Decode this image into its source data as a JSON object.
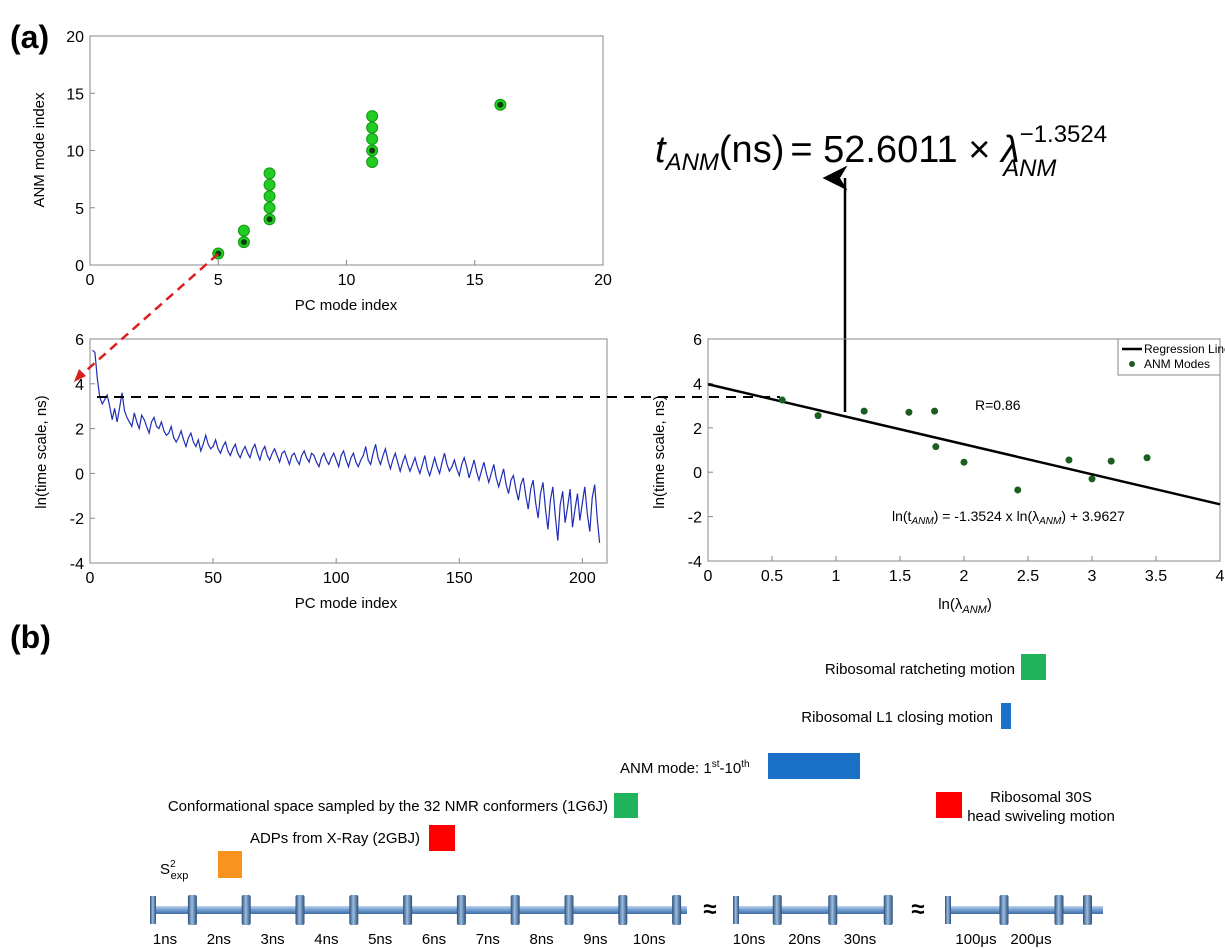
{
  "panel_labels": {
    "a": "(a)",
    "b": "(b)"
  },
  "formula": {
    "lhs_var": "t",
    "lhs_sub": "ANM",
    "unit": "(ns)",
    "rhs_text": "= 52.6011 × ",
    "rhs_var": "λ",
    "rhs_sub": "ANM",
    "rhs_exp": "−1.3524"
  },
  "chart_data": [
    {
      "id": "pc_vs_anm",
      "type": "scatter",
      "xlabel": "PC mode index",
      "ylabel": "ANM mode index",
      "xlim": [
        0,
        20
      ],
      "ylim": [
        0,
        20
      ],
      "xticks": [
        0,
        5,
        10,
        15,
        20
      ],
      "yticks": [
        0,
        5,
        10,
        15,
        20
      ],
      "grid": false,
      "points": [
        {
          "x": 5,
          "y": 1,
          "dark_center": true
        },
        {
          "x": 6,
          "y": 2,
          "dark_center": true
        },
        {
          "x": 6,
          "y": 3,
          "dark_center": false
        },
        {
          "x": 7,
          "y": 4,
          "dark_center": true
        },
        {
          "x": 7,
          "y": 5,
          "dark_center": false
        },
        {
          "x": 7,
          "y": 6,
          "dark_center": false
        },
        {
          "x": 7,
          "y": 7,
          "dark_center": false
        },
        {
          "x": 7,
          "y": 8,
          "dark_center": false
        },
        {
          "x": 11,
          "y": 9,
          "dark_center": false
        },
        {
          "x": 11,
          "y": 10,
          "dark_center": true
        },
        {
          "x": 11,
          "y": 11,
          "dark_center": false
        },
        {
          "x": 11,
          "y": 12,
          "dark_center": false
        },
        {
          "x": 11,
          "y": 13,
          "dark_center": false
        },
        {
          "x": 16,
          "y": 14,
          "dark_center": true
        }
      ],
      "colors": {
        "marker": "#22cc22",
        "marker_edge": "#119911",
        "center": "#0b3d0b"
      }
    },
    {
      "id": "pc_timescale",
      "type": "line",
      "xlabel": "PC mode index",
      "ylabel": "ln(time scale, ns)",
      "xlim": [
        0,
        210
      ],
      "ylim": [
        -4,
        6
      ],
      "xticks": [
        0,
        50,
        100,
        150,
        200
      ],
      "yticks": [
        -4,
        -2,
        0,
        2,
        4,
        6
      ],
      "grid": false,
      "color": "#1f2db5",
      "x_start": 1,
      "values": [
        5.5,
        5.4,
        4.2,
        3.4,
        3.1,
        3.3,
        3.5,
        3.0,
        2.4,
        2.9,
        2.3,
        2.9,
        3.6,
        2.8,
        2.5,
        2.3,
        2.1,
        2.7,
        2.3,
        2.0,
        2.6,
        2.4,
        2.1,
        1.8,
        2.3,
        2.5,
        2.1,
        2.0,
        2.3,
        1.9,
        1.7,
        1.8,
        2.1,
        1.6,
        1.4,
        1.6,
        1.9,
        1.5,
        1.2,
        1.6,
        1.8,
        1.4,
        1.2,
        1.5,
        1.0,
        1.3,
        1.7,
        1.3,
        1.1,
        1.2,
        1.5,
        1.1,
        0.9,
        1.2,
        1.4,
        1.0,
        0.8,
        1.1,
        1.3,
        0.9,
        0.7,
        1.0,
        1.2,
        0.9,
        0.7,
        1.1,
        1.3,
        0.9,
        0.6,
        1.0,
        1.2,
        0.8,
        0.6,
        0.9,
        1.1,
        0.8,
        0.5,
        0.9,
        1.0,
        0.7,
        0.4,
        0.8,
        0.9,
        0.6,
        0.4,
        0.8,
        1.0,
        0.7,
        0.5,
        0.9,
        0.8,
        0.5,
        0.3,
        0.7,
        0.9,
        0.6,
        0.4,
        0.7,
        0.9,
        0.6,
        0.3,
        0.8,
        1.0,
        0.6,
        0.3,
        0.7,
        0.9,
        0.5,
        0.3,
        0.6,
        0.8,
        1.2,
        0.6,
        0.4,
        0.9,
        1.3,
        0.7,
        0.4,
        0.8,
        1.1,
        0.6,
        0.2,
        0.6,
        0.9,
        0.5,
        0.1,
        0.5,
        0.8,
        0.4,
        0.1,
        0.4,
        0.7,
        0.3,
        0.0,
        0.4,
        0.8,
        0.2,
        -0.1,
        0.3,
        0.7,
        0.3,
        0.0,
        0.5,
        0.9,
        0.4,
        0.1,
        0.3,
        0.6,
        0.2,
        -0.1,
        0.4,
        0.7,
        0.3,
        -0.2,
        0.2,
        0.6,
        0.1,
        -0.3,
        0.1,
        0.5,
        0.0,
        -0.4,
        0.0,
        0.4,
        -0.2,
        -0.6,
        -0.2,
        0.2,
        -0.5,
        -0.9,
        -0.3,
        -0.1,
        -0.7,
        -1.2,
        -0.5,
        -0.2,
        -1.0,
        -1.6,
        -0.7,
        -0.3,
        -1.3,
        -2.0,
        -0.9,
        -0.4,
        -1.6,
        -2.5,
        -1.2,
        -0.6,
        -1.9,
        -3.0,
        -1.4,
        -0.8,
        -2.2,
        -1.5,
        -0.7,
        -2.4,
        -1.6,
        -0.9,
        -2.1,
        -1.3,
        -0.6,
        -1.8,
        -2.6,
        -1.1,
        -0.5,
        -2.0,
        -3.1
      ],
      "annotation_level": 3.4
    },
    {
      "id": "regression",
      "type": "scatter",
      "xlabel": "ln(λ",
      "xlabel_sub": "ANM",
      "xlabel_tail": ")",
      "ylabel": "ln(time scale, ns)",
      "xlim": [
        0,
        4
      ],
      "ylim": [
        -4,
        6
      ],
      "xticks": [
        0,
        0.5,
        1,
        1.5,
        2,
        2.5,
        3,
        3.5,
        4
      ],
      "xtick_labels": [
        "0",
        "0.5",
        "1",
        "1.5",
        "2",
        "2.5",
        "3",
        "3.5",
        "4"
      ],
      "yticks": [
        -4,
        -2,
        0,
        2,
        4,
        6
      ],
      "grid": false,
      "points": [
        {
          "x": 0.58,
          "y": 3.25
        },
        {
          "x": 0.86,
          "y": 2.55
        },
        {
          "x": 1.22,
          "y": 2.75
        },
        {
          "x": 1.57,
          "y": 2.7
        },
        {
          "x": 1.77,
          "y": 2.75
        },
        {
          "x": 1.78,
          "y": 1.15
        },
        {
          "x": 2.0,
          "y": 0.45
        },
        {
          "x": 2.42,
          "y": -0.8
        },
        {
          "x": 2.82,
          "y": 0.55
        },
        {
          "x": 3.0,
          "y": -0.3
        },
        {
          "x": 3.15,
          "y": 0.5
        },
        {
          "x": 3.43,
          "y": 0.65
        }
      ],
      "regression": {
        "slope": -1.3524,
        "intercept": 3.9627
      },
      "legend": {
        "placement": "top-right",
        "line": "Regression Line",
        "markers": "ANM Modes"
      },
      "r_label": "R=0.86",
      "eq_parts": [
        "ln(t",
        "ANM",
        ") = -1.3524 x ln(λ",
        "ANM",
        ") + 3.9627"
      ],
      "colors": {
        "points": "#1b5e20",
        "line": "#000000"
      }
    }
  ],
  "timeline": {
    "segments": [
      {
        "labels": [
          "1ns",
          "2ns",
          "3ns",
          "4ns",
          "5ns",
          "6ns",
          "7ns",
          "8ns",
          "9ns",
          "10ns"
        ]
      },
      {
        "labels": [
          "10ns",
          "20ns",
          "30ns"
        ]
      },
      {
        "labels": [
          "100μs",
          "200μs"
        ]
      }
    ],
    "break_symbol": "≈",
    "colors": {
      "rod": "#7aa6d6",
      "tick": "#3d6fa8",
      "tick_dark": "#2b4f78"
    }
  },
  "events": [
    {
      "label": "Ribosomal ratcheting motion",
      "color": "#21b35b"
    },
    {
      "label": "Ribosomal L1 closing motion",
      "color": "#1a73c9"
    },
    {
      "label_main": "ANM mode: 1",
      "label_sup1": "st",
      "label_mid": "-10",
      "label_sup2": "th",
      "color": "#1a6fc7"
    },
    {
      "label": "Conformational space sampled by the 32 NMR conformers (1G6J)",
      "color": "#21b35b"
    },
    {
      "label_line1": "Ribosomal 30S",
      "label_line2": "head swiveling motion",
      "color": "#ff0000"
    },
    {
      "label": "ADPs from X-Ray (2GBJ)",
      "color": "#ff0000"
    },
    {
      "label_main": "S",
      "label_sup": "2",
      "label_sub": "exp",
      "color": "#f7931e"
    }
  ]
}
